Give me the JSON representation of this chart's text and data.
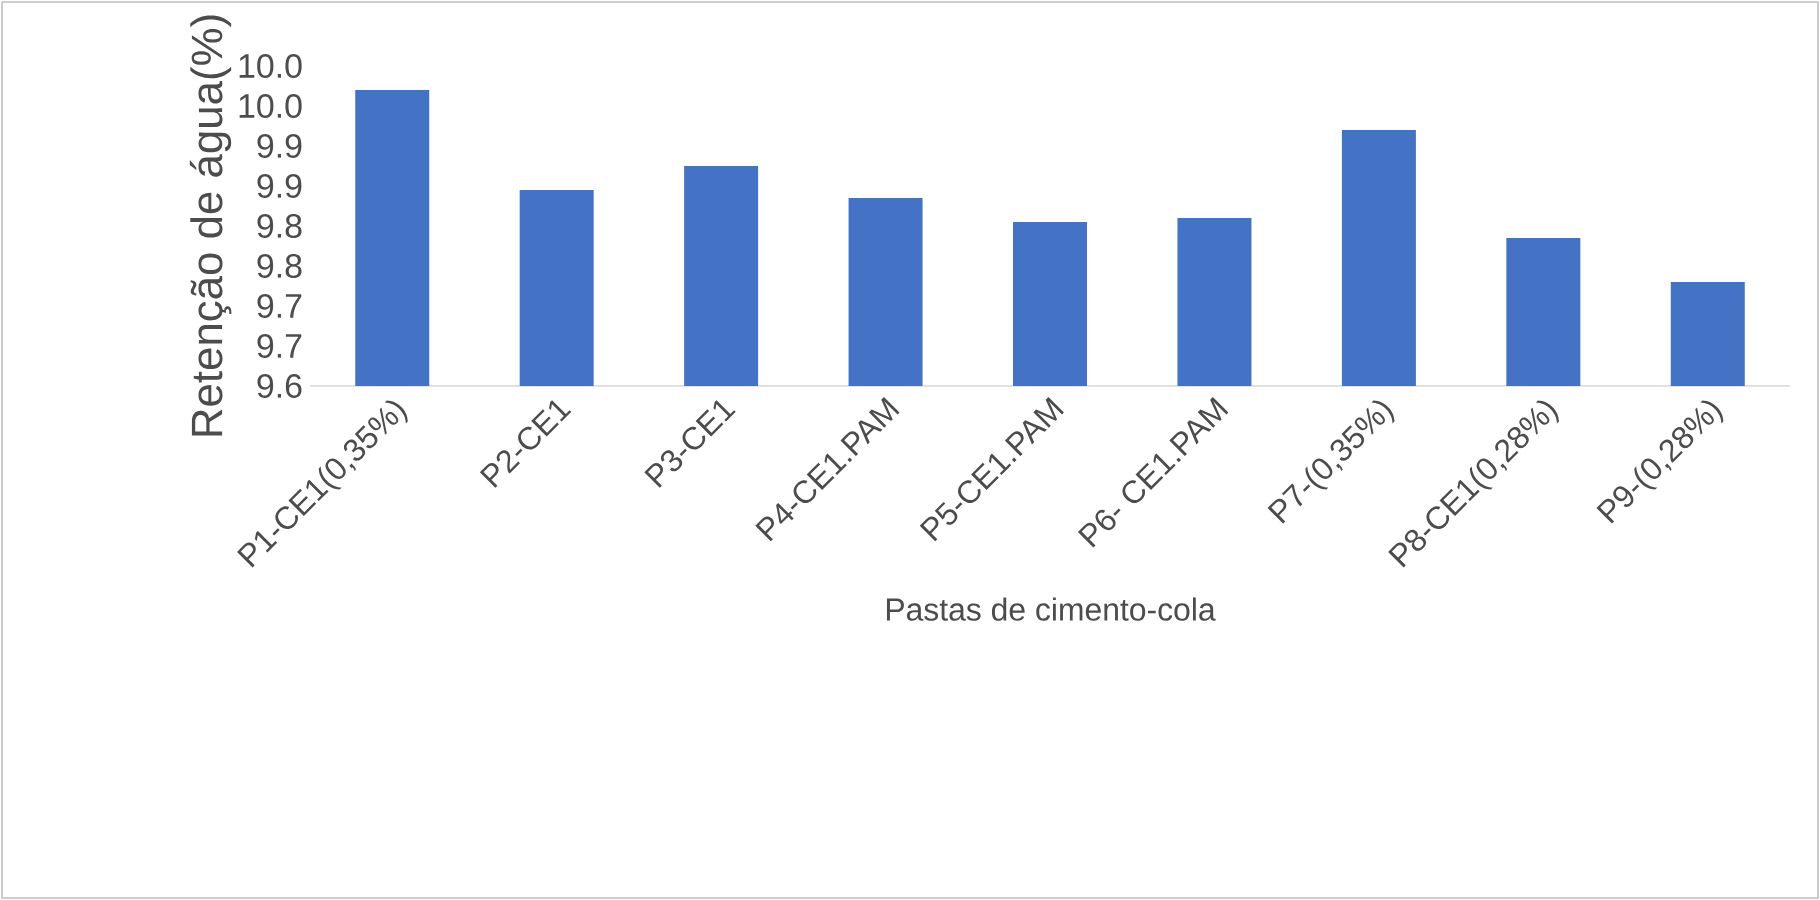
{
  "chart_data": {
    "type": "bar",
    "xlabel": "Pastas de cimento-cola",
    "ylabel": "Retenção de água(%)",
    "categories": [
      "P1-CE1(0,35%)",
      "P2-CE1",
      "P3-CE1",
      "P4-CE1.PAM",
      "P5-CE1.PAM",
      "P6- CE1.PAM",
      "P7-(0,35%)",
      "P8-CE1(0,28%)",
      "P9-(0,28%)"
    ],
    "values": [
      9.97,
      9.845,
      9.875,
      9.835,
      9.805,
      9.81,
      9.92,
      9.785,
      9.73
    ],
    "color": "#4472c4",
    "ylim": [
      9.6,
      10.0
    ],
    "yticks": [
      {
        "value": 9.6,
        "label": "9.6"
      },
      {
        "value": 9.65,
        "label": "9.7"
      },
      {
        "value": 9.7,
        "label": "9.7"
      },
      {
        "value": 9.75,
        "label": "9.8"
      },
      {
        "value": 9.8,
        "label": "9.8"
      },
      {
        "value": 9.85,
        "label": "9.9"
      },
      {
        "value": 9.9,
        "label": "9.9"
      },
      {
        "value": 9.95,
        "label": "10.0"
      },
      {
        "value": 10.0,
        "label": "10.0"
      }
    ],
    "grid": false
  }
}
